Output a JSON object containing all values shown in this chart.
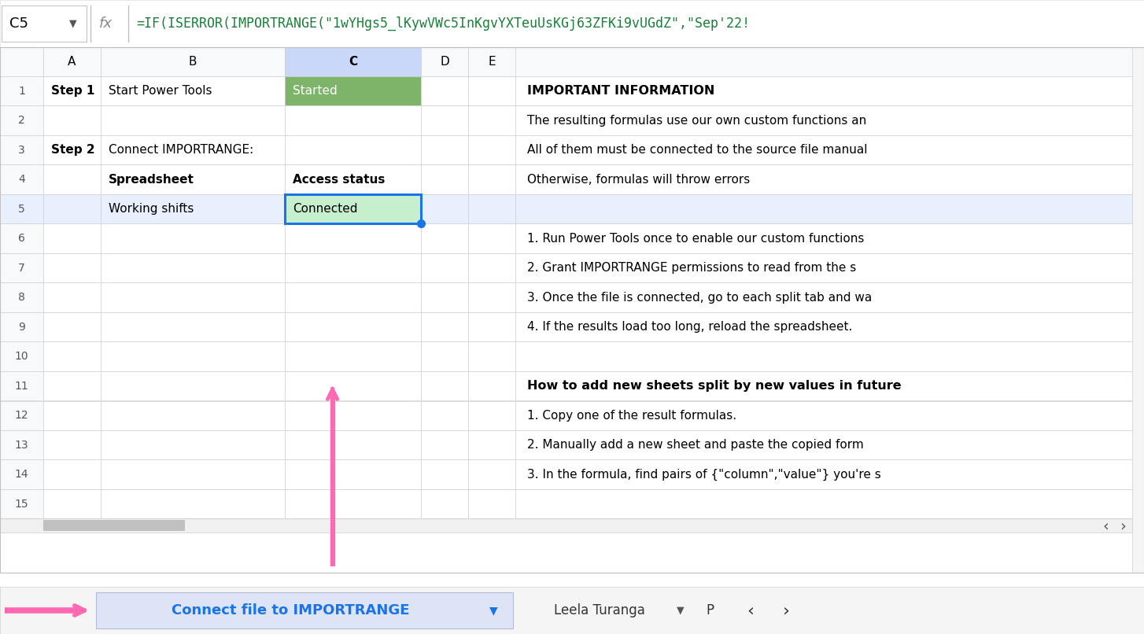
{
  "formula_bar_cell": "C5",
  "formula_bar_formula": "=IF(ISERROR(IMPORTRANGE(\"1wYHgs5_lKywVWc5InKgvYXTeuUsKGj63ZFKi9vUGdZ\",\"Sep'22!",
  "col_headers": [
    "",
    "A",
    "B",
    "C",
    "D",
    "E"
  ],
  "row_count": 15,
  "right_col_content": {
    "1": {
      "text": "IMPORTANT INFORMATION",
      "bold": true
    },
    "2": {
      "text": "The resulting formulas use our own custom functions an",
      "bold": false
    },
    "3": {
      "text": "All of them must be connected to the source file manual",
      "bold": false
    },
    "4": {
      "text": "Otherwise, formulas will throw errors",
      "bold": false
    },
    "5": {
      "text": "",
      "bold": false
    },
    "6": {
      "text": "1. Run Power Tools once to enable our custom functions",
      "bold": false
    },
    "7": {
      "text": "2. Grant IMPORTRANGE permissions to read from the s",
      "bold": false
    },
    "8": {
      "text": "3. Once the file is connected, go to each split tab and wa",
      "bold": false
    },
    "9": {
      "text": "4. If the results load too long, reload the spreadsheet.",
      "bold": false
    },
    "10": {
      "text": "",
      "bold": false
    },
    "11": {
      "text": "How to add new sheets split by new values in future",
      "bold": true
    },
    "12": {
      "text": "1. Copy one of the result formulas.",
      "bold": false
    },
    "13": {
      "text": "2. Manually add a new sheet and paste the copied form",
      "bold": false
    },
    "14": {
      "text": "3. In the formula, find pairs of {\"column\",\"value\"} you're s",
      "bold": false
    }
  },
  "cell_c1_bg": "#7eb36a",
  "cell_c1_text_color": "#ffffff",
  "cell_c5_bg": "#c6efce",
  "cell_c5_border_color": "#1a73e8",
  "selected_row5_bg": "#e8f0fe",
  "selected_col_header_bg": "#c9d7f8",
  "header_row_bg": "#f8f9fa",
  "formula_text_color": "#188038",
  "bottom_bar_bg": "#dce4f5",
  "button_text_color": "#1a73e8",
  "arrow_color": "#ff69b4"
}
